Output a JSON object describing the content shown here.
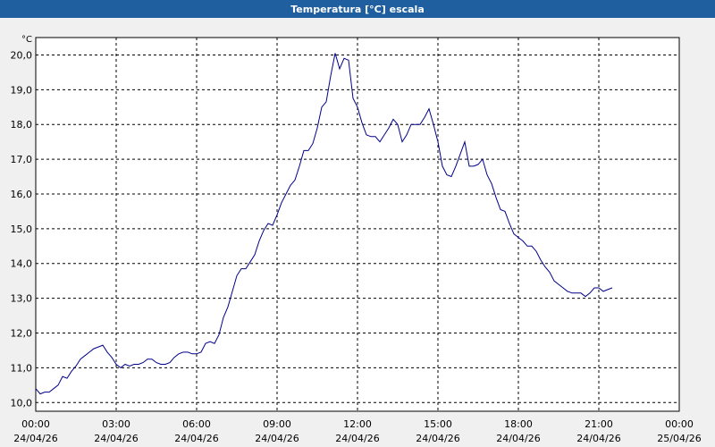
{
  "window_title": "Temperatura [°C] escala",
  "chart_data": {
    "type": "line",
    "unit": "°C",
    "color": "#00008b",
    "xlim": [
      0,
      1440
    ],
    "ylim": [
      9.75,
      20.5
    ],
    "grid": true,
    "xticks": [
      {
        "value": 0,
        "label": "00:00",
        "date": "24/04/26"
      },
      {
        "value": 180,
        "label": "03:00",
        "date": "24/04/26"
      },
      {
        "value": 360,
        "label": "06:00",
        "date": "24/04/26"
      },
      {
        "value": 540,
        "label": "09:00",
        "date": "24/04/26"
      },
      {
        "value": 720,
        "label": "12:00",
        "date": "24/04/26"
      },
      {
        "value": 900,
        "label": "15:00",
        "date": "24/04/26"
      },
      {
        "value": 1080,
        "label": "18:00",
        "date": "24/04/26"
      },
      {
        "value": 1260,
        "label": "21:00",
        "date": "24/04/26"
      },
      {
        "value": 1440,
        "label": "00:00",
        "date": "25/04/26"
      }
    ],
    "yticks": [
      {
        "value": 10,
        "label": "10,0"
      },
      {
        "value": 11,
        "label": "11,0"
      },
      {
        "value": 12,
        "label": "12,0"
      },
      {
        "value": 13,
        "label": "13,0"
      },
      {
        "value": 14,
        "label": "14,0"
      },
      {
        "value": 15,
        "label": "15,0"
      },
      {
        "value": 16,
        "label": "16,0"
      },
      {
        "value": 17,
        "label": "17,0"
      },
      {
        "value": 18,
        "label": "18,0"
      },
      {
        "value": 19,
        "label": "19,0"
      },
      {
        "value": 20,
        "label": "20,0"
      }
    ],
    "x": [
      0,
      10,
      20,
      30,
      40,
      50,
      60,
      70,
      80,
      90,
      100,
      110,
      120,
      130,
      140,
      150,
      160,
      170,
      180,
      190,
      200,
      210,
      220,
      230,
      240,
      250,
      260,
      270,
      280,
      290,
      300,
      310,
      320,
      330,
      340,
      350,
      360,
      370,
      380,
      390,
      400,
      410,
      420,
      430,
      440,
      450,
      460,
      470,
      480,
      490,
      500,
      510,
      520,
      530,
      540,
      550,
      560,
      570,
      580,
      590,
      600,
      610,
      620,
      630,
      640,
      650,
      660,
      670,
      680,
      690,
      700,
      710,
      720,
      730,
      740,
      750,
      760,
      770,
      780,
      790,
      800,
      810,
      820,
      830,
      840,
      850,
      860,
      870,
      880,
      890,
      900,
      910,
      920,
      930,
      940,
      950,
      960,
      970,
      980,
      990,
      1000,
      1010,
      1020,
      1030,
      1040,
      1050,
      1060,
      1070,
      1080,
      1090,
      1100,
      1110,
      1120,
      1130,
      1140,
      1150,
      1160,
      1170,
      1180,
      1190,
      1200,
      1210,
      1220,
      1230,
      1240,
      1250,
      1260,
      1270,
      1280,
      1290
    ],
    "values": [
      10.4,
      10.25,
      10.3,
      10.3,
      10.4,
      10.5,
      10.75,
      10.7,
      10.9,
      11.05,
      11.25,
      11.35,
      11.45,
      11.55,
      11.6,
      11.65,
      11.45,
      11.3,
      11.1,
      11.0,
      11.1,
      11.05,
      11.1,
      11.1,
      11.15,
      11.25,
      11.25,
      11.15,
      11.1,
      11.1,
      11.15,
      11.3,
      11.4,
      11.45,
      11.45,
      11.4,
      11.4,
      11.45,
      11.7,
      11.75,
      11.7,
      11.95,
      12.45,
      12.75,
      13.2,
      13.65,
      13.85,
      13.85,
      14.05,
      14.25,
      14.65,
      14.95,
      15.15,
      15.1,
      15.4,
      15.75,
      16.0,
      16.25,
      16.4,
      16.8,
      17.25,
      17.25,
      17.45,
      17.9,
      18.5,
      18.65,
      19.4,
      20.05,
      19.6,
      19.9,
      19.85,
      18.75,
      18.5,
      18.05,
      17.7,
      17.65,
      17.65,
      17.5,
      17.7,
      17.9,
      18.15,
      18.0,
      17.5,
      17.7,
      18.0,
      18.0,
      18.0,
      18.2,
      18.45,
      18.0,
      17.5,
      16.8,
      16.55,
      16.5,
      16.8,
      17.15,
      17.5,
      16.8,
      16.8,
      16.85,
      17.0,
      16.55,
      16.3,
      15.9,
      15.55,
      15.5,
      15.15,
      14.85,
      14.75,
      14.65,
      14.5,
      14.5,
      14.35,
      14.1,
      13.9,
      13.75,
      13.5,
      13.4,
      13.3,
      13.2,
      13.15,
      13.15,
      13.15,
      13.05,
      13.15,
      13.3,
      13.3,
      13.2,
      13.25,
      13.3
    ]
  }
}
